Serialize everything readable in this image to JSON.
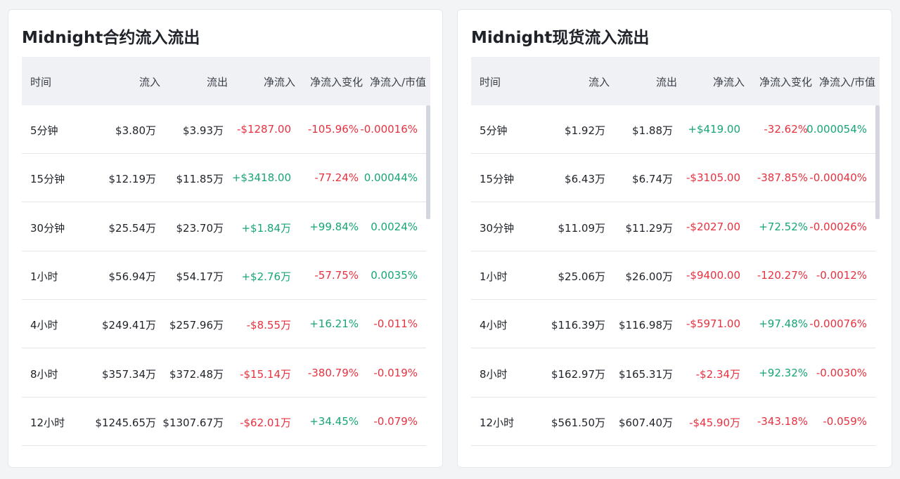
{
  "panels": [
    {
      "title": "Midnight合约流入流出",
      "headers": [
        "时间",
        "流入",
        "流出",
        "净流入",
        "净流入变化",
        "净流入/市值"
      ],
      "rows": [
        {
          "time": "5分钟",
          "inflow": "$3.80万",
          "outflow": "$3.93万",
          "net": "-$1287.00",
          "net_change": "-105.96%",
          "net_mcap": "-0.00016%"
        },
        {
          "time": "15分钟",
          "inflow": "$12.19万",
          "outflow": "$11.85万",
          "net": "+$3418.00",
          "net_change": "-77.24%",
          "net_mcap": "0.00044%"
        },
        {
          "time": "30分钟",
          "inflow": "$25.54万",
          "outflow": "$23.70万",
          "net": "+$1.84万",
          "net_change": "+99.84%",
          "net_mcap": "0.0024%"
        },
        {
          "time": "1小时",
          "inflow": "$56.94万",
          "outflow": "$54.17万",
          "net": "+$2.76万",
          "net_change": "-57.75%",
          "net_mcap": "0.0035%"
        },
        {
          "time": "4小时",
          "inflow": "$249.41万",
          "outflow": "$257.96万",
          "net": "-$8.55万",
          "net_change": "+16.21%",
          "net_mcap": "-0.011%"
        },
        {
          "time": "8小时",
          "inflow": "$357.34万",
          "outflow": "$372.48万",
          "net": "-$15.14万",
          "net_change": "-380.79%",
          "net_mcap": "-0.019%"
        },
        {
          "time": "12小时",
          "inflow": "$1245.65万",
          "outflow": "$1307.67万",
          "net": "-$62.01万",
          "net_change": "+34.45%",
          "net_mcap": "-0.079%"
        }
      ]
    },
    {
      "title": "Midnight现货流入流出",
      "headers": [
        "时间",
        "流入",
        "流出",
        "净流入",
        "净流入变化",
        "净流入/市值"
      ],
      "rows": [
        {
          "time": "5分钟",
          "inflow": "$1.92万",
          "outflow": "$1.88万",
          "net": "+$419.00",
          "net_change": "-32.62%",
          "net_mcap": "0.000054%"
        },
        {
          "time": "15分钟",
          "inflow": "$6.43万",
          "outflow": "$6.74万",
          "net": "-$3105.00",
          "net_change": "-387.85%",
          "net_mcap": "-0.00040%"
        },
        {
          "time": "30分钟",
          "inflow": "$11.09万",
          "outflow": "$11.29万",
          "net": "-$2027.00",
          "net_change": "+72.52%",
          "net_mcap": "-0.00026%"
        },
        {
          "time": "1小时",
          "inflow": "$25.06万",
          "outflow": "$26.00万",
          "net": "-$9400.00",
          "net_change": "-120.27%",
          "net_mcap": "-0.0012%"
        },
        {
          "time": "4小时",
          "inflow": "$116.39万",
          "outflow": "$116.98万",
          "net": "-$5971.00",
          "net_change": "+97.48%",
          "net_mcap": "-0.00076%"
        },
        {
          "time": "8小时",
          "inflow": "$162.97万",
          "outflow": "$165.31万",
          "net": "-$2.34万",
          "net_change": "+92.32%",
          "net_mcap": "-0.0030%"
        },
        {
          "time": "12小时",
          "inflow": "$561.50万",
          "outflow": "$607.40万",
          "net": "-$45.90万",
          "net_change": "-343.18%",
          "net_mcap": "-0.059%"
        }
      ]
    }
  ],
  "colors": {
    "positive": "#17a577",
    "negative": "#e8313f"
  }
}
